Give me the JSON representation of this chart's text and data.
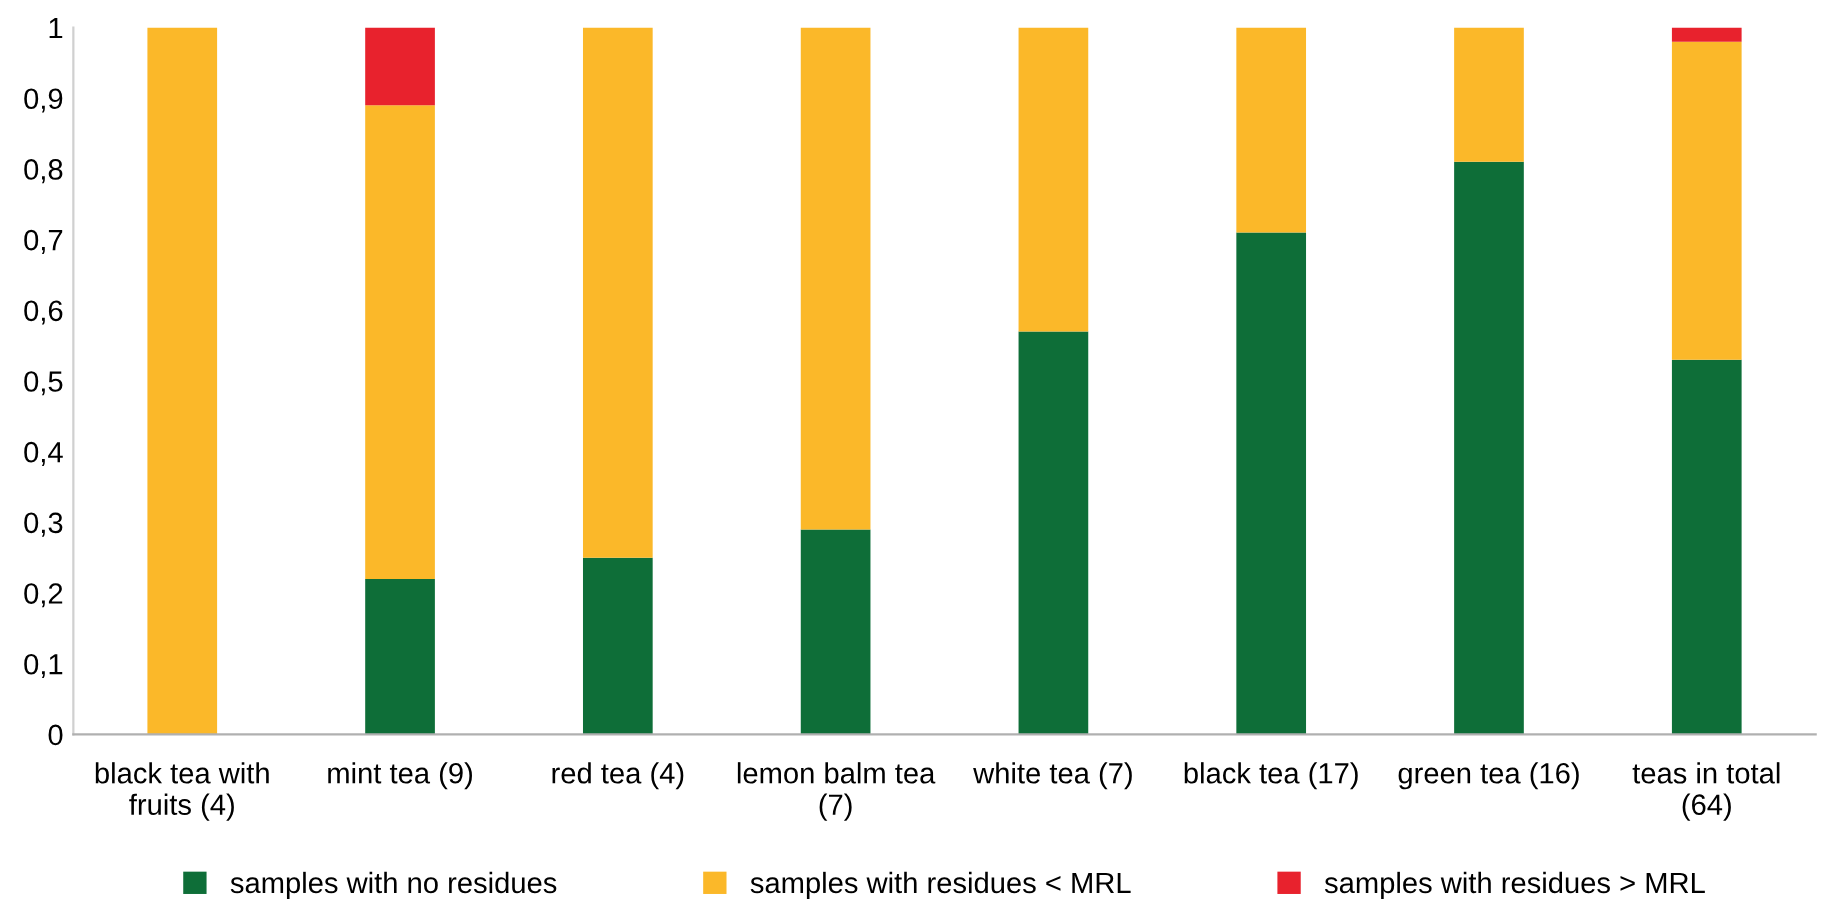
{
  "chart_data": {
    "type": "bar",
    "stacked": true,
    "categories": [
      "black tea with\nfruits (4)",
      "mint tea (9)",
      "red tea (4)",
      "lemon balm tea\n(7)",
      "white tea (7)",
      "black tea (17)",
      "green tea (16)",
      "teas in total\n(64)"
    ],
    "series": [
      {
        "name": "samples with no residues",
        "color": "#0e6e38",
        "values": [
          0,
          0.22,
          0.25,
          0.29,
          0.57,
          0.71,
          0.81,
          0.53
        ]
      },
      {
        "name": "samples with residues < MRL",
        "color": "#fbb829",
        "values": [
          1,
          0.67,
          0.75,
          0.71,
          0.43,
          0.29,
          0.19,
          0.45
        ]
      },
      {
        "name": "samples with residues > MRL",
        "color": "#e8222d",
        "values": [
          0,
          0.11,
          0,
          0,
          0,
          0,
          0,
          0.02
        ]
      }
    ],
    "ylim": [
      0,
      1
    ],
    "yticks": [
      0,
      {
        "value": 0.1,
        "label": "0,1"
      },
      {
        "value": 0.2,
        "label": "0,2"
      },
      {
        "value": 0.3,
        "label": "0,3"
      },
      {
        "value": 0.4,
        "label": "0,4"
      },
      {
        "value": 0.5,
        "label": "0,5"
      },
      {
        "value": 0.6,
        "label": "0,6"
      },
      {
        "value": 0.7,
        "label": "0,7"
      },
      {
        "value": 0.8,
        "label": "0,8"
      },
      {
        "value": 0.9,
        "label": "0,9"
      },
      1
    ],
    "grid": false,
    "legend": "bottom"
  }
}
